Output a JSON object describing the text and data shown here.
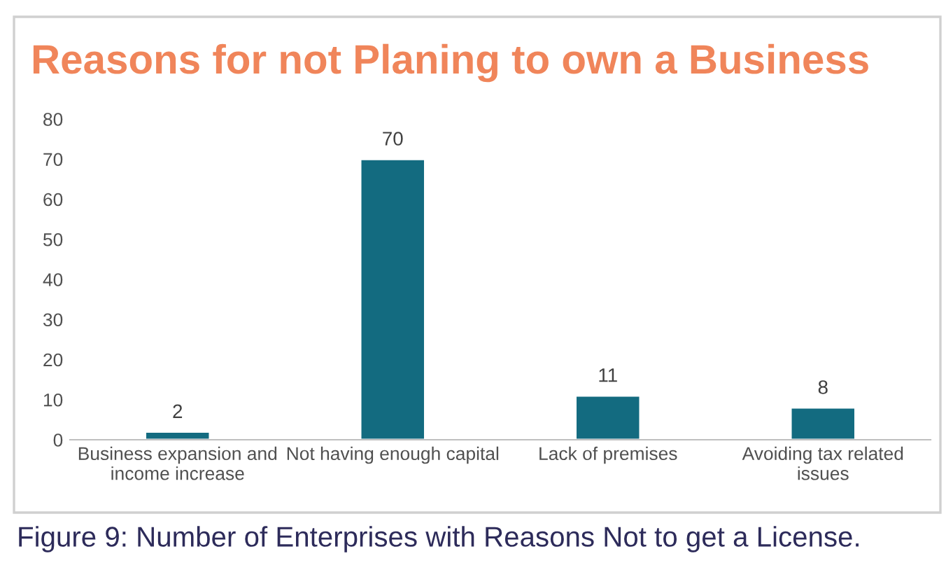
{
  "chart_data": {
    "type": "bar",
    "title": "Reasons for not Planing to own a Business",
    "categories": [
      "Business expansion and\nincome increase",
      "Not having enough capital",
      "Lack of premises",
      "Avoiding tax related\nissues"
    ],
    "values": [
      2,
      70,
      11,
      8
    ],
    "color": "#136b80",
    "ylim": [
      0,
      80
    ],
    "yticks": [
      0,
      10,
      20,
      30,
      40,
      50,
      60,
      70,
      80
    ],
    "grid": false,
    "data_labels": true,
    "legend": false,
    "annotations": [
      "Figure 9: Number of Enterprises with Reasons Not to get a License."
    ]
  }
}
